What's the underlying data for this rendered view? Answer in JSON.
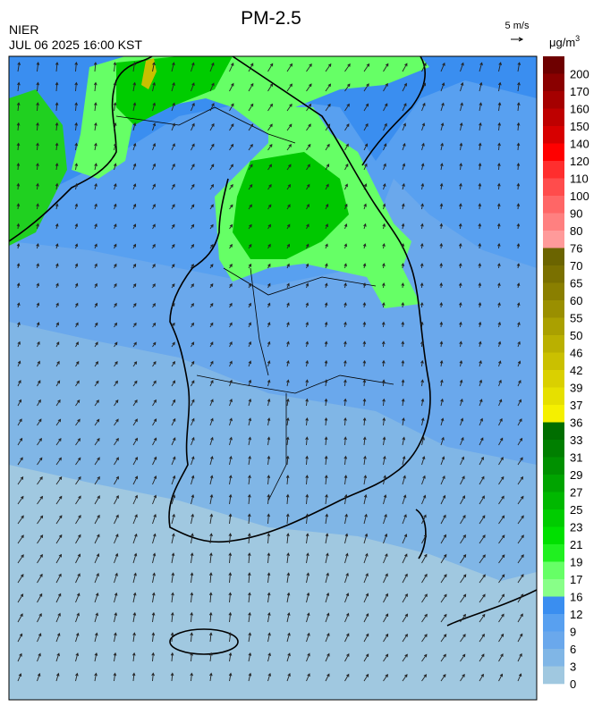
{
  "header": {
    "title": "PM-2.5",
    "agency": "NIER",
    "datetime": "JUL 06 2025 16:00 KST",
    "wind_scale": "5 m/s"
  },
  "legend": {
    "unit": "μg/m",
    "unit_power": "3",
    "labels": [
      "200",
      "170",
      "160",
      "150",
      "140",
      "120",
      "110",
      "100",
      "90",
      "80",
      "76",
      "70",
      "65",
      "60",
      "55",
      "50",
      "46",
      "42",
      "39",
      "37",
      "36",
      "33",
      "31",
      "29",
      "27",
      "25",
      "23",
      "21",
      "19",
      "17",
      "16",
      "12",
      "9",
      "6",
      "3",
      "0"
    ],
    "colors": [
      "#6e0000",
      "#8a0000",
      "#a50000",
      "#be0000",
      "#d70000",
      "#ff0000",
      "#ff2e2e",
      "#ff4c4c",
      "#ff6666",
      "#ff8080",
      "#ff9a9a",
      "#6b6400",
      "#7a7000",
      "#8a7f00",
      "#9a8f00",
      "#aaa000",
      "#bab000",
      "#cac000",
      "#dad000",
      "#e6e000",
      "#f5f000",
      "#006e00",
      "#007f00",
      "#009000",
      "#00a400",
      "#00b800",
      "#00cc00",
      "#00e000",
      "#20f020",
      "#66ff66",
      "#88ff88",
      "#3a8ef0",
      "#58a0f0",
      "#6aa8ec",
      "#80b6e6",
      "#a0c8e0"
    ]
  }
}
